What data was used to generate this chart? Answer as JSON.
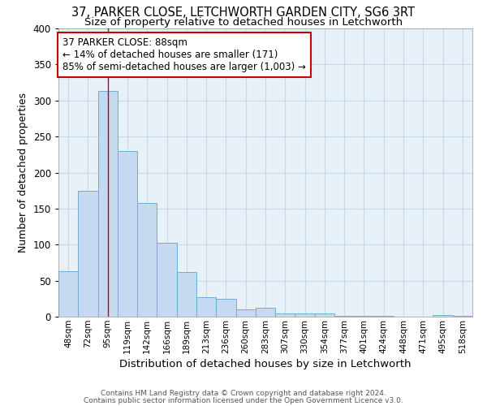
{
  "title1": "37, PARKER CLOSE, LETCHWORTH GARDEN CITY, SG6 3RT",
  "title2": "Size of property relative to detached houses in Letchworth",
  "xlabel": "Distribution of detached houses by size in Letchworth",
  "ylabel": "Number of detached properties",
  "categories": [
    "48sqm",
    "72sqm",
    "95sqm",
    "119sqm",
    "142sqm",
    "166sqm",
    "189sqm",
    "213sqm",
    "236sqm",
    "260sqm",
    "283sqm",
    "307sqm",
    "330sqm",
    "354sqm",
    "377sqm",
    "401sqm",
    "424sqm",
    "448sqm",
    "471sqm",
    "495sqm",
    "518sqm"
  ],
  "values": [
    63,
    175,
    313,
    230,
    158,
    103,
    62,
    27,
    25,
    10,
    12,
    5,
    5,
    5,
    1,
    1,
    1,
    0,
    0,
    2,
    1
  ],
  "bar_color": "#c5d9f0",
  "bar_edge_color": "#6baed6",
  "annotation_text": "37 PARKER CLOSE: 88sqm\n← 14% of detached houses are smaller (171)\n85% of semi-detached houses are larger (1,003) →",
  "annotation_box_color": "#ffffff",
  "annotation_box_edge": "#cc0000",
  "vline_color": "#cc0000",
  "grid_color": "#c8d8ea",
  "background_color": "#e8f0f8",
  "footer1": "Contains HM Land Registry data © Crown copyright and database right 2024.",
  "footer2": "Contains public sector information licensed under the Open Government Licence v3.0.",
  "ylim": [
    0,
    400
  ],
  "yticks": [
    0,
    50,
    100,
    150,
    200,
    250,
    300,
    350,
    400
  ],
  "vline_bin_index": 2.0
}
